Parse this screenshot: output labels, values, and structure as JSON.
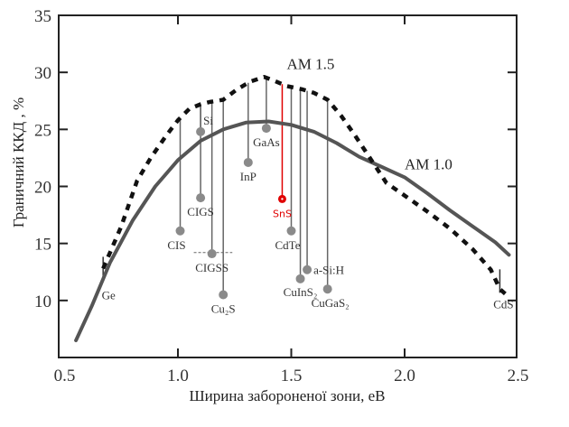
{
  "chart_data": {
    "type": "line",
    "title": "",
    "xlabel": "Ширина забороненої зони, еВ",
    "ylabel": "Граничний ККД , %",
    "xlim": [
      0.5,
      2.5
    ],
    "ylim": [
      5,
      35
    ],
    "xticks": [
      "0.5",
      "1.0",
      "1.5",
      "2.0",
      "2.5"
    ],
    "yticks": [
      "10",
      "15",
      "20",
      "25",
      "30",
      "35"
    ],
    "grid": false,
    "series": [
      {
        "name": "AM 1.5",
        "style": "dashed",
        "points": [
          [
            0.67,
            12.8
          ],
          [
            0.75,
            16.5
          ],
          [
            0.82,
            20.5
          ],
          [
            0.88,
            22.5
          ],
          [
            0.95,
            24.5
          ],
          [
            1.0,
            25.8
          ],
          [
            1.05,
            26.8
          ],
          [
            1.1,
            27.2
          ],
          [
            1.14,
            27.4
          ],
          [
            1.2,
            27.6
          ],
          [
            1.26,
            28.5
          ],
          [
            1.32,
            29.2
          ],
          [
            1.38,
            29.6
          ],
          [
            1.42,
            29.3
          ],
          [
            1.48,
            28.8
          ],
          [
            1.55,
            28.5
          ],
          [
            1.6,
            28.2
          ],
          [
            1.66,
            27.6
          ],
          [
            1.72,
            26.2
          ],
          [
            1.78,
            24.5
          ],
          [
            1.85,
            22.4
          ],
          [
            1.92,
            20.3
          ],
          [
            2.0,
            19.2
          ],
          [
            2.1,
            17.8
          ],
          [
            2.2,
            16.3
          ],
          [
            2.3,
            14.5
          ],
          [
            2.38,
            12.7
          ],
          [
            2.42,
            11.0
          ],
          [
            2.46,
            10.3
          ]
        ]
      },
      {
        "name": "AM 1.0",
        "style": "solid",
        "points": [
          [
            0.55,
            6.5
          ],
          [
            0.62,
            9.5
          ],
          [
            0.7,
            13.3
          ],
          [
            0.8,
            17.0
          ],
          [
            0.9,
            20.0
          ],
          [
            1.0,
            22.3
          ],
          [
            1.1,
            24.0
          ],
          [
            1.2,
            25.0
          ],
          [
            1.3,
            25.6
          ],
          [
            1.4,
            25.7
          ],
          [
            1.5,
            25.4
          ],
          [
            1.6,
            24.8
          ],
          [
            1.7,
            23.8
          ],
          [
            1.8,
            22.6
          ],
          [
            1.9,
            21.7
          ],
          [
            2.0,
            20.8
          ],
          [
            2.1,
            19.4
          ],
          [
            2.2,
            17.9
          ],
          [
            2.3,
            16.5
          ],
          [
            2.4,
            15.1
          ],
          [
            2.46,
            14.0
          ]
        ]
      }
    ],
    "curve_labels": [
      {
        "text": "AM 1.5",
        "x": 1.48,
        "y": 30.3
      },
      {
        "text": "AM 1.0",
        "x": 2.0,
        "y": 21.5
      }
    ],
    "materials": [
      {
        "name": "Ge",
        "eg": 0.67,
        "eff": 12.8,
        "marker": "tick",
        "label_pos": "below"
      },
      {
        "name": "CIS",
        "eg": 1.01,
        "eff": 16.1,
        "marker": "dot",
        "label_pos": "below"
      },
      {
        "name": "Si",
        "eg": 1.1,
        "eff": 24.8,
        "marker": "dot",
        "label_pos": "above-right"
      },
      {
        "name": "CIGS",
        "eg": 1.1,
        "eff": 19.0,
        "marker": "dot",
        "label_pos": "below"
      },
      {
        "name": "CIGSS",
        "eg": 1.15,
        "eff": 14.1,
        "marker": "dot",
        "label_pos": "below"
      },
      {
        "name": "Cu₂S",
        "eg": 1.2,
        "eff": 10.5,
        "marker": "dot",
        "label_pos": "below"
      },
      {
        "name": "InP",
        "eg": 1.31,
        "eff": 22.1,
        "marker": "dot",
        "label_pos": "below"
      },
      {
        "name": "GaAs",
        "eg": 1.39,
        "eff": 25.1,
        "marker": "dot",
        "label_pos": "below"
      },
      {
        "name": "SnS",
        "eg": 1.46,
        "eff": 18.9,
        "marker": "dot-highlight",
        "label_pos": "below",
        "color": "#e00000"
      },
      {
        "name": "CdTe",
        "eg": 1.5,
        "eff": 16.1,
        "marker": "dot",
        "label_pos": "below"
      },
      {
        "name": "CuInS₂",
        "eg": 1.54,
        "eff": 11.9,
        "marker": "dot",
        "label_pos": "below"
      },
      {
        "name": "a-Si:H",
        "eg": 1.57,
        "eff": 12.7,
        "marker": "dot",
        "label_pos": "right"
      },
      {
        "name": "CuGaS₂",
        "eg": 1.66,
        "eff": 11.0,
        "marker": "dot",
        "label_pos": "below"
      },
      {
        "name": "CdS",
        "eg": 2.42,
        "eff": 11.7,
        "marker": "tick",
        "label_pos": "below-left"
      }
    ],
    "reference_line": {
      "eff": 14.2,
      "from": 1.07,
      "to": 1.24,
      "style": "dashed"
    }
  },
  "colors": {
    "axis": "#222222",
    "am15": "#111111",
    "am10": "#555555",
    "marker": "#8a8a8a",
    "highlight": "#e00000",
    "ylabel": "#1a1a80"
  }
}
